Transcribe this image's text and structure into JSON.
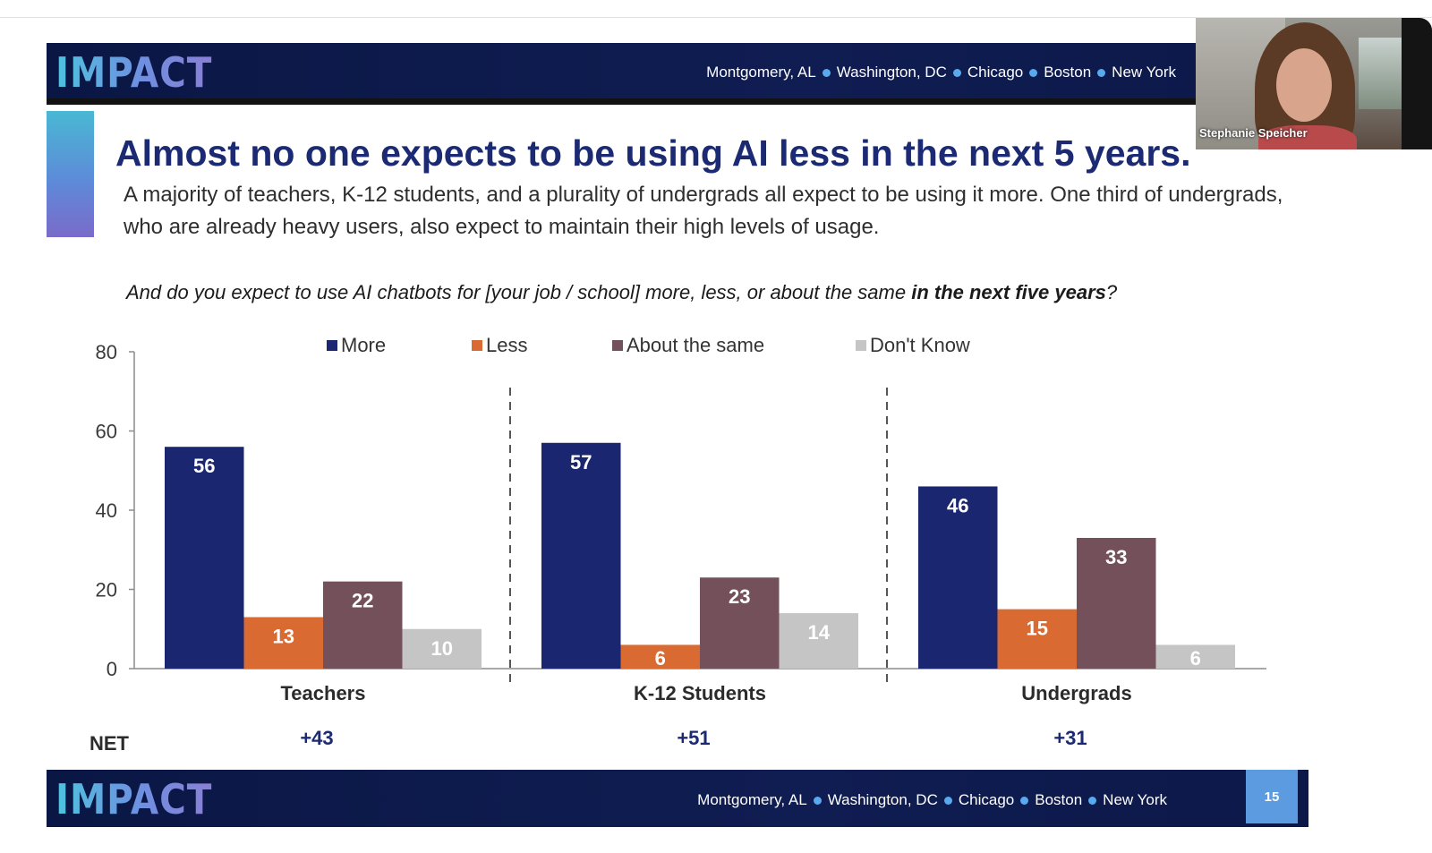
{
  "header": {
    "logo": "IMPACT",
    "cities": [
      "Montgomery, AL",
      "Washington, DC",
      "Chicago",
      "Boston",
      "New York"
    ]
  },
  "slide": {
    "title": "Almost no one expects to be using AI less in the next 5 years.",
    "subtitle": "A majority of teachers, K-12 students, and a plurality of undergrads all expect to be using it more. One third of undergrads, who are already heavy users, also expect to maintain their high levels of usage.",
    "question_main": "And do you expect to use AI chatbots for [your job / school] more, less, or about the same ",
    "question_bold": "in the next five years",
    "question_end": "?",
    "net_label": "NET",
    "page_number": "15"
  },
  "webcam": {
    "participant_name": "Stephanie Speicher"
  },
  "colors": {
    "more": "#1b2670",
    "less": "#d86a32",
    "same": "#74505a",
    "dont_know": "#c5c5c5",
    "title": "#1b2a72"
  },
  "chart_data": {
    "type": "bar",
    "categories": [
      "Teachers",
      "K-12 Students",
      "Undergrads"
    ],
    "series": [
      {
        "name": "More",
        "values": [
          56,
          57,
          46
        ]
      },
      {
        "name": "Less",
        "values": [
          13,
          6,
          15
        ]
      },
      {
        "name": "About the same",
        "values": [
          22,
          23,
          33
        ]
      },
      {
        "name": "Don't Know",
        "values": [
          10,
          14,
          6
        ]
      }
    ],
    "ylim": [
      0,
      80
    ],
    "yticks": [
      0,
      20,
      40,
      60,
      80
    ],
    "net": [
      "+43",
      "+51",
      "+31"
    ],
    "legend": "top",
    "grid": false
  }
}
